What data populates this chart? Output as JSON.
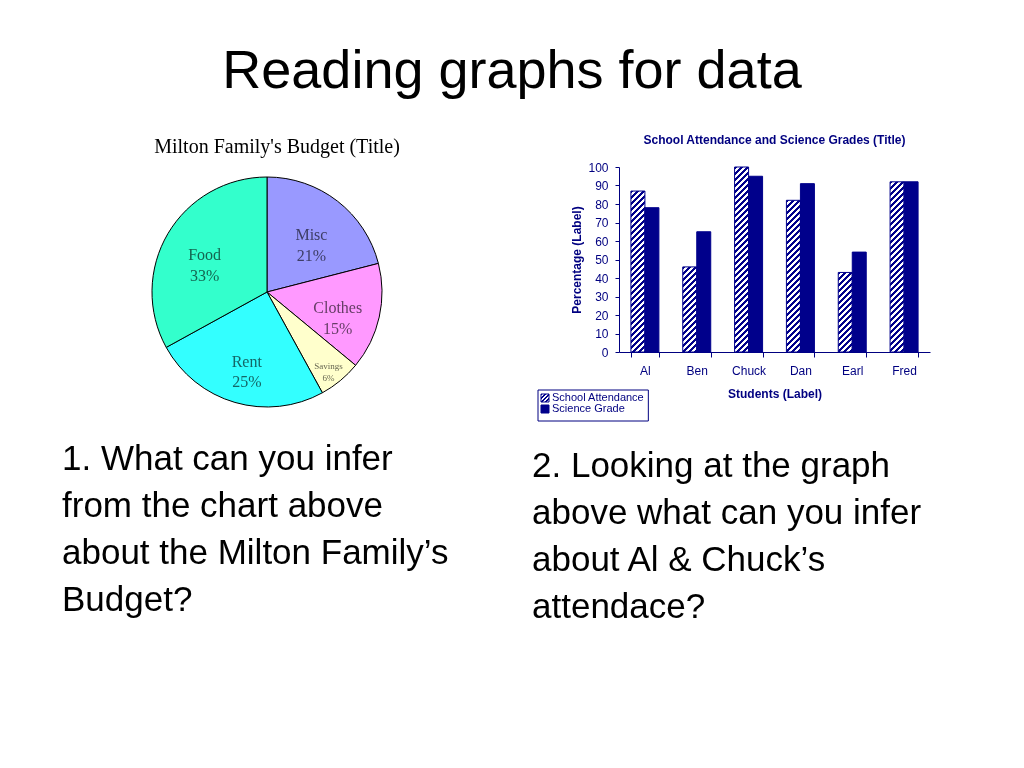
{
  "chart_data": [
    {
      "type": "other",
      "title": "Reading graphs for data"
    },
    {
      "type": "pie",
      "title": "Milton Family's Budget (Title)",
      "categories": [
        "Misc",
        "Clothes",
        "Savings",
        "Rent",
        "Food"
      ],
      "values": [
        21,
        15,
        6,
        25,
        33
      ],
      "colors": [
        "#9999ff",
        "#ff99ff",
        "#ffffcc",
        "#33ffff",
        "#33ffcc"
      ],
      "value_labels": [
        "21%",
        "15%",
        "6%",
        "25%",
        "33%"
      ],
      "annotations": [
        "1. What can you infer from the chart above about the Milton Family’s Budget?"
      ]
    },
    {
      "type": "bar",
      "title": "School Attendance and Science Grades (Title)",
      "xlabel": "Students (Label)",
      "ylabel": "Percentage (Label)",
      "categories": [
        "Al",
        "Ben",
        "Chuck",
        "Dan",
        "Earl",
        "Fred"
      ],
      "series": [
        {
          "name": "School Attendance",
          "color": "#00008b",
          "values": [
            87,
            46,
            100,
            82,
            43,
            92
          ]
        },
        {
          "name": "Science Grade",
          "color": "#00008b",
          "values": [
            78,
            65,
            95,
            91,
            54,
            92
          ]
        }
      ],
      "ylim": [
        0,
        100
      ],
      "yticks": [
        0,
        10,
        20,
        30,
        40,
        50,
        60,
        70,
        80,
        90,
        100
      ],
      "legend": "bottom left",
      "annotations": [
        "2. Looking at the graph above what can you infer about Al & Chuck’s attendace?"
      ]
    }
  ]
}
